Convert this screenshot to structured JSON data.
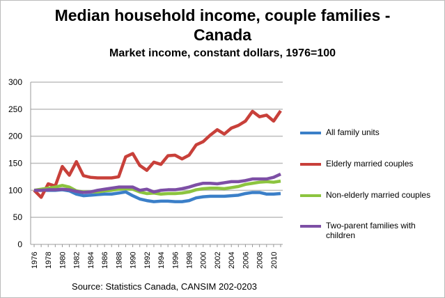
{
  "chart_data": {
    "type": "line",
    "title": "Median household income, couple families - Canada",
    "title_lines": [
      "Median household income, couple families -",
      "Canada"
    ],
    "subtitle": "Market income, constant dollars, 1976=100",
    "source": "Source: Statistics Canada, CANSIM  202-0203",
    "xlabel": "",
    "ylabel": "",
    "ylim": [
      0,
      300
    ],
    "yticks": [
      0,
      50,
      100,
      150,
      200,
      250,
      300
    ],
    "x": [
      1976,
      1977,
      1978,
      1979,
      1980,
      1981,
      1982,
      1983,
      1984,
      1985,
      1986,
      1987,
      1988,
      1989,
      1990,
      1991,
      1992,
      1993,
      1994,
      1995,
      1996,
      1997,
      1998,
      1999,
      2000,
      2001,
      2002,
      2003,
      2004,
      2005,
      2006,
      2007,
      2008,
      2009,
      2010,
      2011
    ],
    "xticks": [
      "1976",
      "1978",
      "1980",
      "1982",
      "1984",
      "1986",
      "1988",
      "1990",
      "1992",
      "1994",
      "1996",
      "1998",
      "2000",
      "2002",
      "2004",
      "2006",
      "2008",
      "2010"
    ],
    "grid": true,
    "legend": "right",
    "series": [
      {
        "name": "All family units",
        "color": "#3b7fc8",
        "values": [
          100,
          100,
          100,
          100,
          101,
          99,
          93,
          90,
          91,
          92,
          93,
          93,
          95,
          97,
          90,
          84,
          81,
          79,
          80,
          80,
          79,
          79,
          81,
          86,
          88,
          89,
          89,
          89,
          90,
          91,
          94,
          96,
          96,
          93,
          93,
          94
        ]
      },
      {
        "name": "Elderly married couples",
        "color": "#c8403a",
        "values": [
          100,
          87,
          112,
          108,
          144,
          128,
          153,
          127,
          124,
          123,
          123,
          123,
          125,
          162,
          168,
          146,
          137,
          152,
          148,
          164,
          165,
          158,
          165,
          184,
          190,
          202,
          212,
          204,
          215,
          220,
          228,
          246,
          236,
          239,
          228,
          247
        ]
      },
      {
        "name": "Non-elderly married couples",
        "color": "#8cc43f",
        "values": [
          100,
          102,
          104,
          106,
          109,
          106,
          99,
          97,
          97,
          97,
          99,
          100,
          102,
          103,
          102,
          97,
          94,
          95,
          93,
          94,
          94,
          95,
          97,
          101,
          103,
          104,
          104,
          103,
          105,
          107,
          111,
          113,
          115,
          116,
          115,
          117
        ]
      },
      {
        "name": "Two-parent families with children",
        "color": "#7d4fa5",
        "values": [
          100,
          100,
          101,
          101,
          102,
          101,
          98,
          96,
          97,
          100,
          102,
          104,
          106,
          106,
          106,
          100,
          102,
          97,
          100,
          101,
          101,
          103,
          106,
          110,
          113,
          113,
          112,
          114,
          116,
          116,
          118,
          121,
          121,
          121,
          124,
          130
        ]
      }
    ]
  }
}
